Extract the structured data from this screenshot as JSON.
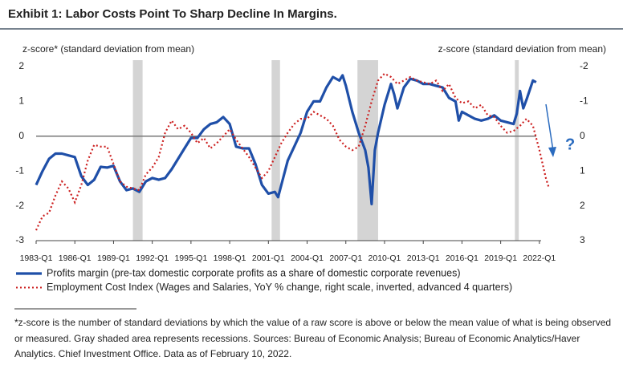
{
  "chart_data": {
    "type": "line",
    "title": "Exhibit 1: Labor Costs Point To Sharp Decline In Margins.",
    "ylabel": "z-score* (standard deviation from mean)",
    "y2label": "z-score (standard deviation from mean)",
    "xlim": [
      1983,
      2024
    ],
    "xticks": [
      {
        "value": 1983,
        "label": "1983-Q1"
      },
      {
        "value": 1986,
        "label": "1986-Q1"
      },
      {
        "value": 1989,
        "label": "1989-Q1"
      },
      {
        "value": 1992,
        "label": "1992-Q1"
      },
      {
        "value": 1995,
        "label": "1995-Q1"
      },
      {
        "value": 1998,
        "label": "1998-Q1"
      },
      {
        "value": 2001,
        "label": "2001-Q1"
      },
      {
        "value": 2004,
        "label": "2004-Q1"
      },
      {
        "value": 2007,
        "label": "2007-Q1"
      },
      {
        "value": 2010,
        "label": "2010-Q1"
      },
      {
        "value": 2013,
        "label": "2013-Q1"
      },
      {
        "value": 2016,
        "label": "2016-Q1"
      },
      {
        "value": 2019,
        "label": "2019-Q1"
      },
      {
        "value": 2022,
        "label": "2022-Q1"
      }
    ],
    "ylim": [
      -3,
      2
    ],
    "yticks": [
      -3,
      -2,
      -1,
      0,
      1,
      2
    ],
    "y2lim": [
      3,
      -2
    ],
    "y2ticks": [
      3,
      2,
      1,
      0,
      -1,
      -2
    ],
    "recessions": [
      [
        1990.5,
        1991.25
      ],
      [
        2001.25,
        2001.9
      ],
      [
        2007.9,
        2009.5
      ],
      [
        2020.1,
        2020.4
      ]
    ],
    "series": [
      {
        "name": "Profits margin (pre-tax domestic corporate profits as a share of domestic corporate revenues)",
        "color": "#1f4fa8",
        "style": "solid",
        "x": [
          1983.0,
          1983.5,
          1984.0,
          1984.5,
          1985.0,
          1985.5,
          1986.0,
          1986.5,
          1987.0,
          1987.5,
          1988.0,
          1988.5,
          1989.0,
          1989.5,
          1990.0,
          1990.5,
          1991.0,
          1991.5,
          1992.0,
          1992.5,
          1993.0,
          1993.5,
          1994.0,
          1994.5,
          1995.0,
          1995.5,
          1996.0,
          1996.5,
          1997.0,
          1997.5,
          1998.0,
          1998.5,
          1999.0,
          1999.5,
          2000.0,
          2000.5,
          2001.0,
          2001.5,
          2001.75,
          2002.0,
          2002.5,
          2003.0,
          2003.5,
          2004.0,
          2004.5,
          2005.0,
          2005.5,
          2006.0,
          2006.5,
          2006.75,
          2007.0,
          2007.5,
          2008.0,
          2008.5,
          2008.75,
          2009.0,
          2009.25,
          2009.5,
          2010.0,
          2010.5,
          2010.75,
          2011.0,
          2011.5,
          2012.0,
          2012.5,
          2013.0,
          2013.5,
          2014.0,
          2014.5,
          2015.0,
          2015.5,
          2015.75,
          2016.0,
          2016.5,
          2017.0,
          2017.5,
          2018.0,
          2018.5,
          2019.0,
          2019.5,
          2020.0,
          2020.25,
          2020.5,
          2020.75,
          2021.0,
          2021.5,
          2021.75
        ],
        "values": [
          -1.4,
          -1.0,
          -0.65,
          -0.5,
          -0.5,
          -0.55,
          -0.6,
          -1.15,
          -1.4,
          -1.25,
          -0.88,
          -0.9,
          -0.85,
          -1.3,
          -1.55,
          -1.5,
          -1.6,
          -1.3,
          -1.2,
          -1.25,
          -1.2,
          -0.95,
          -0.65,
          -0.35,
          -0.05,
          -0.05,
          0.2,
          0.35,
          0.4,
          0.55,
          0.35,
          -0.3,
          -0.35,
          -0.35,
          -0.8,
          -1.4,
          -1.65,
          -1.6,
          -1.75,
          -1.4,
          -0.7,
          -0.3,
          0.1,
          0.7,
          1.0,
          1.0,
          1.4,
          1.7,
          1.6,
          1.75,
          1.45,
          0.7,
          0.1,
          -0.4,
          -0.9,
          -1.95,
          -0.4,
          0.1,
          0.9,
          1.5,
          1.2,
          0.8,
          1.4,
          1.65,
          1.6,
          1.5,
          1.5,
          1.45,
          1.4,
          1.1,
          1.0,
          0.45,
          0.7,
          0.6,
          0.5,
          0.45,
          0.5,
          0.6,
          0.45,
          0.4,
          0.35,
          0.65,
          1.3,
          0.8,
          1.05,
          1.6,
          1.55
        ]
      },
      {
        "name": "Employment Cost Index (Wages and Salaries, YoY % change, right scale, inverted, advanced 4 quarters)",
        "color": "#cc1f1f",
        "style": "dotted",
        "axis": "y2",
        "x": [
          1983.0,
          1983.5,
          1984.0,
          1984.5,
          1985.0,
          1985.5,
          1986.0,
          1986.5,
          1987.0,
          1987.5,
          1988.0,
          1988.5,
          1989.0,
          1989.5,
          1990.0,
          1990.5,
          1991.0,
          1991.5,
          1992.0,
          1992.5,
          1993.0,
          1993.5,
          1994.0,
          1994.5,
          1995.0,
          1995.5,
          1996.0,
          1996.5,
          1997.0,
          1997.5,
          1998.0,
          1998.5,
          1999.0,
          1999.5,
          2000.0,
          2000.5,
          2001.0,
          2001.5,
          2002.0,
          2002.5,
          2003.0,
          2003.5,
          2004.0,
          2004.5,
          2005.0,
          2005.5,
          2006.0,
          2006.5,
          2007.0,
          2007.5,
          2008.0,
          2008.5,
          2009.0,
          2009.5,
          2010.0,
          2010.5,
          2011.0,
          2011.5,
          2012.0,
          2012.5,
          2013.0,
          2013.5,
          2014.0,
          2014.5,
          2015.0,
          2015.5,
          2016.0,
          2016.5,
          2017.0,
          2017.5,
          2018.0,
          2018.5,
          2019.0,
          2019.5,
          2020.0,
          2020.5,
          2021.0,
          2021.5,
          2022.0,
          2022.5,
          2022.75
        ],
        "values": [
          2.7,
          2.3,
          2.2,
          1.7,
          1.3,
          1.5,
          1.9,
          1.4,
          0.7,
          0.25,
          0.3,
          0.3,
          0.8,
          1.3,
          1.45,
          1.5,
          1.55,
          1.1,
          0.9,
          0.6,
          -0.1,
          -0.45,
          -0.2,
          -0.3,
          -0.1,
          0.2,
          0.05,
          0.35,
          0.2,
          0,
          -0.2,
          0.1,
          0.35,
          0.6,
          0.9,
          1.2,
          1.0,
          0.6,
          0.2,
          -0.1,
          -0.35,
          -0.5,
          -0.5,
          -0.7,
          -0.6,
          -0.5,
          -0.3,
          0.1,
          0.3,
          0.4,
          0.3,
          -0.3,
          -1.0,
          -1.6,
          -1.8,
          -1.7,
          -1.5,
          -1.6,
          -1.7,
          -1.6,
          -1.55,
          -1.5,
          -1.6,
          -1.3,
          -1.5,
          -1.1,
          -0.95,
          -1.0,
          -0.8,
          -0.9,
          -0.6,
          -0.55,
          -0.3,
          -0.1,
          -0.15,
          -0.3,
          -0.5,
          -0.3,
          0.4,
          1.2,
          1.5
        ]
      }
    ],
    "annotation": "?",
    "footnote": "*z-score is the number of standard deviations by which the value of a raw score is above or below the mean value of what is being observed or measured. Gray shaded area represents recessions. Sources: Bureau of Economic Analysis; Bureau of Economic Analytics/Haver Analytics. Chief Investment Office. Data as of February 10, 2022."
  }
}
